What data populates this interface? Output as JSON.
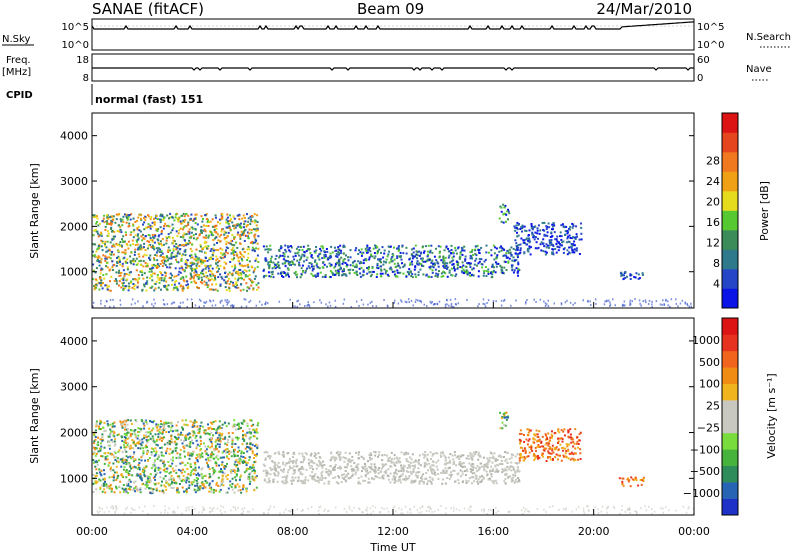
{
  "header": {
    "station": "SANAE (fitACF)",
    "beam": "Beam 09",
    "date": "24/Mar/2010"
  },
  "strips": {
    "nsky_label": "N.Sky",
    "nsky_ticks": [
      "10^5",
      "10^0"
    ],
    "nsearch_label": "N.Search",
    "nsearch_ticks": [
      "10^5",
      "10^0"
    ],
    "freq_label_top": "Freq.",
    "freq_label_bottom": "[MHz]",
    "freq_ticks": [
      "18",
      "8"
    ],
    "nave_label": "Nave",
    "nave_ticks": [
      "60",
      "0"
    ],
    "cpid_label": "CPID",
    "cpid_text": "normal (fast) 151"
  },
  "chart_data": [
    {
      "type": "heatmap",
      "name": "power",
      "ylabel": "Slant Range [km]",
      "ylim": [
        200,
        4500
      ],
      "xlim_hours": [
        0,
        24
      ],
      "yticks": [
        "1000",
        "2000",
        "3000",
        "4000"
      ],
      "colorbar": {
        "label": "Power [dB]",
        "ticks": [
          "4",
          "8",
          "12",
          "16",
          "20",
          "24",
          "28"
        ],
        "colors": [
          "#0a14e6",
          "#2646c8",
          "#2e7a8c",
          "#3c8c5a",
          "#56c832",
          "#e6dc1e",
          "#f0a014",
          "#f0781e",
          "#e6461e",
          "#dc1414"
        ]
      },
      "echo_regions": [
        {
          "t0": 0.0,
          "t1": 6.6,
          "r0": 600,
          "r1": 2300,
          "level": "high"
        },
        {
          "t0": 6.8,
          "t1": 17.0,
          "r0": 900,
          "r1": 1600,
          "level": "mid"
        },
        {
          "t0": 16.2,
          "t1": 16.6,
          "r0": 2100,
          "r1": 2500,
          "level": "mid"
        },
        {
          "t0": 16.8,
          "t1": 19.5,
          "r0": 1400,
          "r1": 2100,
          "level": "low"
        },
        {
          "t0": 21.0,
          "t1": 22.0,
          "r0": 850,
          "r1": 1050,
          "level": "low"
        }
      ]
    },
    {
      "type": "heatmap",
      "name": "velocity",
      "ylabel": "Slant Range [km]",
      "ylim": [
        200,
        4500
      ],
      "xlim_hours": [
        0,
        24
      ],
      "yticks": [
        "1000",
        "2000",
        "3000",
        "4000"
      ],
      "colorbar": {
        "label": "Velocity [m s⁻¹]",
        "ticks": [
          "1000",
          "500",
          "100",
          "25",
          "−25",
          "−100",
          "−500",
          "−1000"
        ],
        "colors": [
          "#1e32c8",
          "#2864b4",
          "#2e8c5a",
          "#46b43c",
          "#78dc3c",
          "#c8c8c0",
          "#c8c8c0",
          "#f0b41e",
          "#f08c14",
          "#f0641e",
          "#e6321e",
          "#dc1414"
        ]
      },
      "echo_regions": [
        {
          "t0": 0.0,
          "t1": 6.6,
          "r0": 700,
          "r1": 2300,
          "level": "mixed"
        },
        {
          "t0": 6.8,
          "t1": 17.0,
          "r0": 900,
          "r1": 1600,
          "level": "ground"
        },
        {
          "t0": 16.2,
          "t1": 16.6,
          "r0": 2100,
          "r1": 2500,
          "level": "mixed"
        },
        {
          "t0": 17.0,
          "t1": 19.5,
          "r0": 1400,
          "r1": 2100,
          "level": "negative"
        },
        {
          "t0": 21.0,
          "t1": 22.0,
          "r0": 850,
          "r1": 1050,
          "level": "negative"
        }
      ]
    }
  ],
  "x_axis": {
    "label": "Time UT",
    "ticks": [
      "00:00",
      "04:00",
      "08:00",
      "12:00",
      "16:00",
      "20:00",
      "00:00"
    ]
  }
}
